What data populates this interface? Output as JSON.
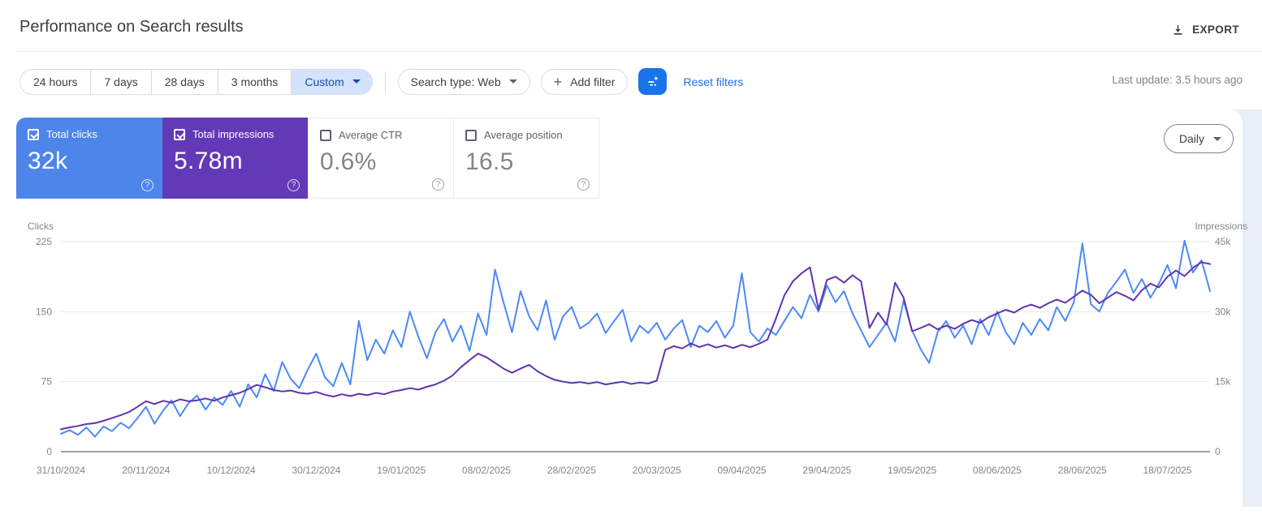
{
  "header": {
    "title": "Performance on Search results",
    "export_label": "EXPORT"
  },
  "filters": {
    "date_ranges": [
      "24 hours",
      "7 days",
      "28 days",
      "3 months"
    ],
    "custom_label": "Custom",
    "search_type_label": "Search type: Web",
    "add_filter_label": "Add filter",
    "plus_glyph": "+",
    "reset_label": "Reset filters",
    "last_update": "Last update: 3.5 hours ago"
  },
  "controls": {
    "granularity": "Daily"
  },
  "metrics": {
    "tiles": [
      {
        "label": "Total clicks",
        "value": "32k",
        "checked": true,
        "color": "#4d85eb",
        "help": "?"
      },
      {
        "label": "Total impressions",
        "value": "5.78m",
        "checked": true,
        "color": "#6239b7",
        "help": "?"
      },
      {
        "label": "Average CTR",
        "value": "0.6%",
        "checked": false,
        "help": "?"
      },
      {
        "label": "Average position",
        "value": "16.5",
        "checked": false,
        "help": "?"
      }
    ]
  },
  "colors": {
    "clicks_line": "#4d8af5",
    "impressions_line": "#5e35b1",
    "accent_blue": "#1a73e8",
    "selected_chip_bg": "#d3e3fc",
    "selected_chip_text": "#174ea6",
    "page_bg": "#e9eef7",
    "gridline": "#e8eaed",
    "baseline": "#9aa0a6"
  },
  "chart_data": {
    "type": "line",
    "title": "",
    "day_step": 2,
    "x_tick_interval_days": 20,
    "x_start_date": "31/10/2024",
    "x_tick_labels": [
      "31/10/2024",
      "20/11/2024",
      "10/12/2024",
      "30/12/2024",
      "19/01/2025",
      "08/02/2025",
      "28/02/2025",
      "20/03/2025",
      "09/04/2025",
      "29/04/2025",
      "19/05/2025",
      "08/06/2025",
      "28/06/2025",
      "18/07/2025"
    ],
    "left_axis": {
      "title": "Clicks",
      "max": 225,
      "ticks": [
        0,
        75,
        150,
        225
      ],
      "tick_labels": [
        "0",
        "75",
        "150",
        "225"
      ]
    },
    "right_axis": {
      "title": "Impressions",
      "max": 45000,
      "ticks": [
        0,
        15000,
        30000,
        45000
      ],
      "tick_labels": [
        "0",
        "15k",
        "30k",
        "45k"
      ]
    },
    "series": [
      {
        "name": "Total clicks",
        "axis": "left",
        "color": "#4d8af5",
        "values": [
          19,
          23,
          18,
          26,
          16,
          27,
          22,
          31,
          25,
          36,
          48,
          30,
          44,
          55,
          38,
          52,
          60,
          45,
          58,
          50,
          65,
          48,
          72,
          58,
          83,
          65,
          96,
          78,
          68,
          88,
          105,
          80,
          70,
          95,
          72,
          140,
          98,
          120,
          105,
          130,
          112,
          150,
          123,
          100,
          128,
          142,
          118,
          135,
          108,
          148,
          125,
          195,
          160,
          128,
          172,
          145,
          130,
          162,
          120,
          145,
          155,
          132,
          138,
          148,
          127,
          140,
          152,
          118,
          135,
          127,
          138,
          120,
          132,
          141,
          112,
          135,
          128,
          140,
          122,
          135,
          191,
          128,
          118,
          132,
          125,
          140,
          155,
          143,
          168,
          150,
          178,
          160,
          172,
          148,
          130,
          112,
          125,
          138,
          118,
          162,
          130,
          110,
          95,
          128,
          140,
          122,
          135,
          115,
          142,
          125,
          150,
          128,
          115,
          138,
          125,
          142,
          130,
          155,
          140,
          160,
          223,
          158,
          150,
          170,
          182,
          195,
          170,
          185,
          165,
          180,
          200,
          175,
          226,
          192,
          205,
          172
        ]
      },
      {
        "name": "Total impressions",
        "axis": "right",
        "color": "#5e35b1",
        "values": [
          4800,
          5200,
          5500,
          5900,
          6100,
          6600,
          7200,
          7800,
          8500,
          9600,
          10800,
          10200,
          10900,
          10500,
          11200,
          10800,
          11000,
          11400,
          10900,
          11600,
          12100,
          12600,
          13400,
          14300,
          13800,
          13200,
          12900,
          13100,
          12600,
          12400,
          12800,
          12200,
          11800,
          12300,
          11900,
          12400,
          12100,
          12600,
          12300,
          12900,
          13200,
          13600,
          13300,
          13900,
          14400,
          15200,
          16300,
          18100,
          19600,
          21000,
          20200,
          19000,
          17800,
          16900,
          17800,
          18600,
          17200,
          16200,
          15400,
          15000,
          14700,
          14900,
          14600,
          14900,
          14400,
          14700,
          15000,
          14500,
          14800,
          14600,
          15200,
          21800,
          22600,
          22100,
          23200,
          22400,
          23000,
          22300,
          22800,
          22200,
          22900,
          22400,
          23100,
          24000,
          28500,
          33500,
          36500,
          38200,
          39500,
          30500,
          36800,
          37500,
          36200,
          37800,
          36500,
          26500,
          29800,
          27200,
          36200,
          33000,
          25800,
          26500,
          27300,
          26200,
          27000,
          26300,
          27400,
          28200,
          27600,
          28800,
          29600,
          30400,
          29800,
          30900,
          31500,
          30800,
          31800,
          32600,
          31900,
          33200,
          34500,
          33600,
          31800,
          33000,
          34200,
          33400,
          32400,
          34600,
          36000,
          35200,
          37500,
          38800,
          37600,
          39400,
          40600,
          40200
        ]
      }
    ]
  }
}
